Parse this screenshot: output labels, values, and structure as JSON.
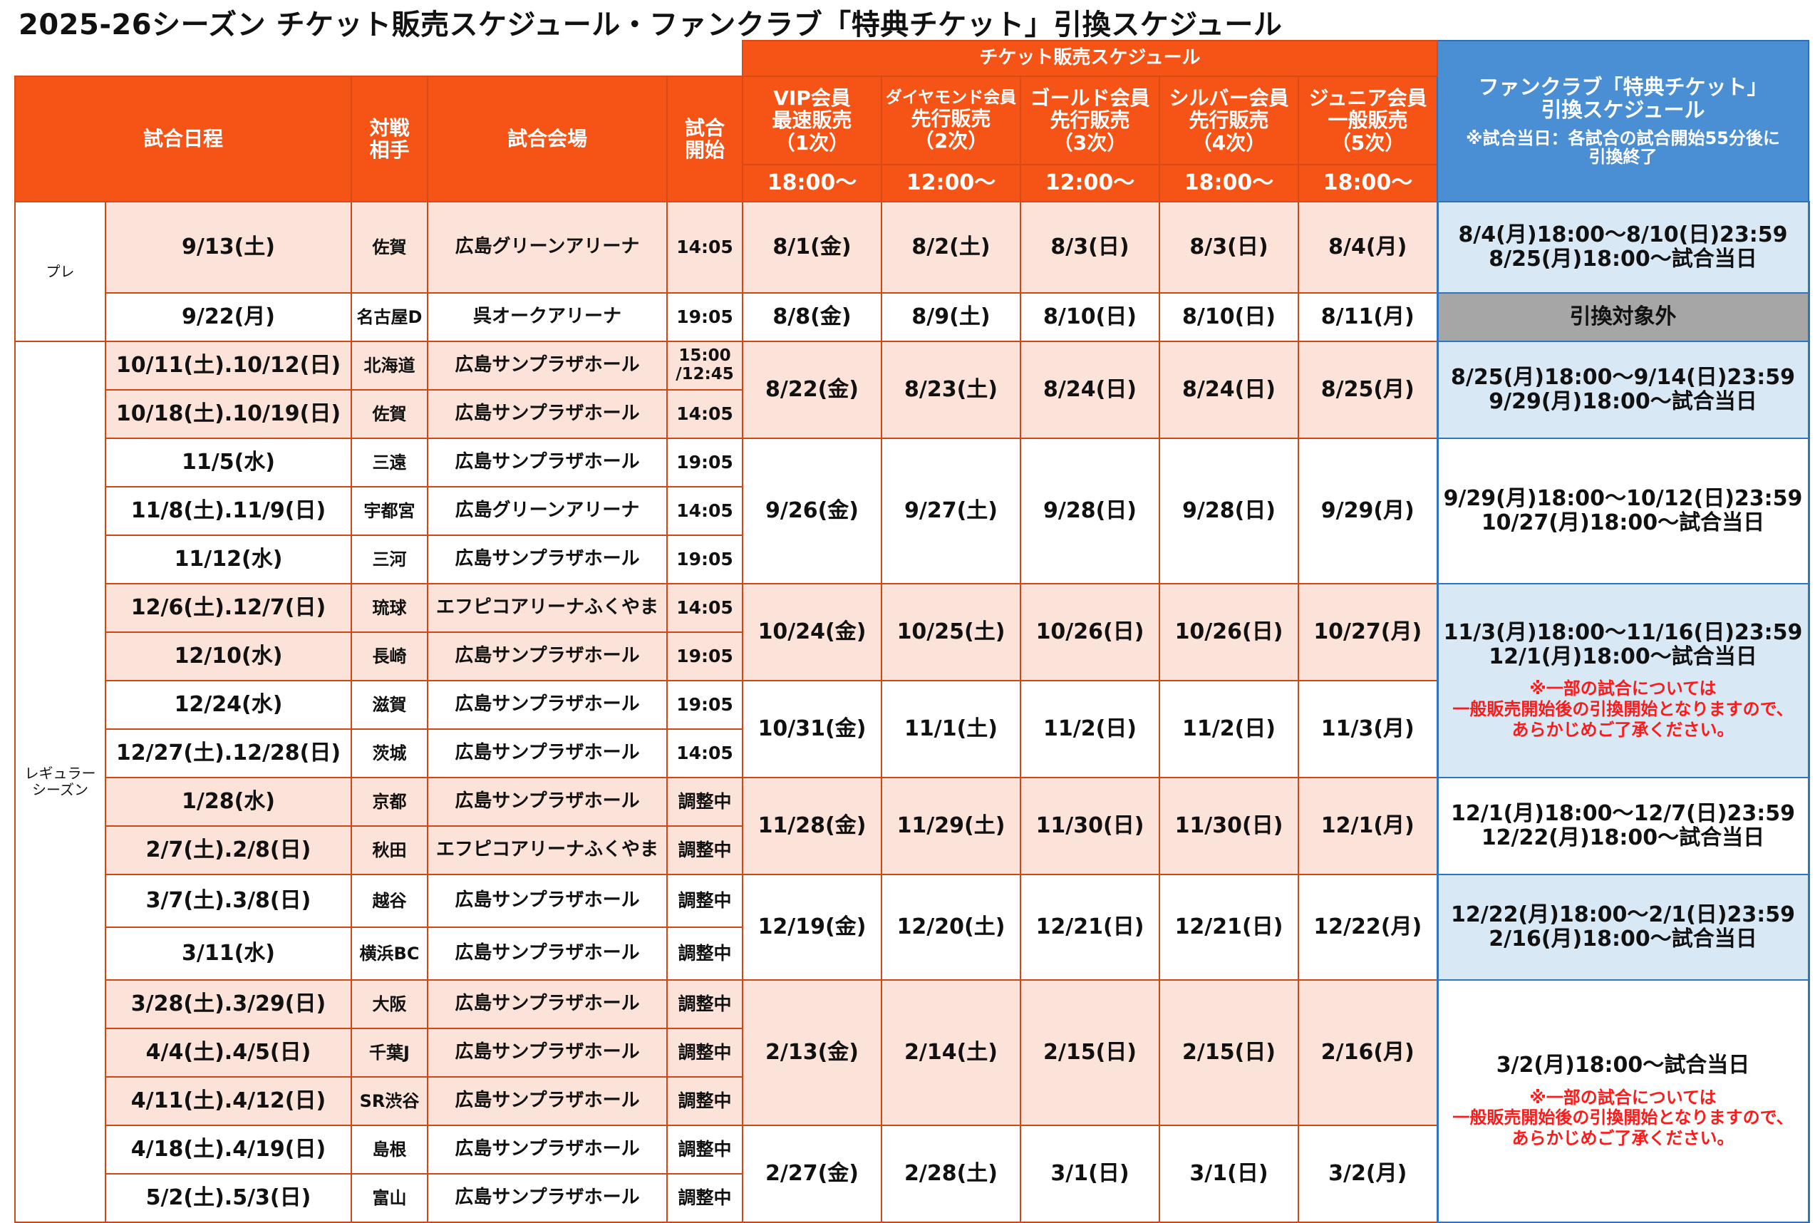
{
  "title": "2025-26シーズン チケット販売スケジュール・ファンクラブ「特典チケット」引換スケジュール",
  "colors": {
    "header_orange": "#f65316",
    "fanclub_blue": "#4a8fd4",
    "row_pink": "#fbe3da",
    "fanclub_light_blue": "#d9e8f5",
    "excluded_grey": "#a6a6a6",
    "note_red": "#ff1a1a"
  },
  "header": {
    "sales_group": "チケット販売スケジュール",
    "date": "試合日程",
    "opponent": [
      "対戦",
      "相手"
    ],
    "venue": "試合会場",
    "start": [
      "試合",
      "開始"
    ],
    "tiers": [
      {
        "lines": [
          "VIP会員",
          "最速販売",
          "（1次）"
        ],
        "time": "18:00～"
      },
      {
        "lines": [
          "ダイヤモンド会員",
          "先行販売",
          "（2次）"
        ],
        "time": "12:00～"
      },
      {
        "lines": [
          "ゴールド会員",
          "先行販売",
          "（3次）"
        ],
        "time": "12:00～"
      },
      {
        "lines": [
          "シルバー会員",
          "先行販売",
          "（4次）"
        ],
        "time": "18:00～"
      },
      {
        "lines": [
          "ジュニア会員",
          "一般販売",
          "（5次）"
        ],
        "time": "18:00～"
      }
    ],
    "fanclub_title": [
      "ファンクラブ「特典チケット」",
      "引換スケジュール"
    ],
    "fanclub_note": [
      "※試合当日：各試合の試合開始55分後に",
      "引換終了"
    ]
  },
  "sections": {
    "pre": "プレ",
    "regular": [
      "レギュラー",
      "シーズン"
    ]
  },
  "games": [
    {
      "date": "9/13(土)",
      "opp": "佐賀",
      "venue": "広島グリーンアリーナ",
      "start": [
        "14:05"
      ]
    },
    {
      "date": "9/22(月)",
      "opp": "名古屋D",
      "venue": "呉オークアリーナ",
      "start": [
        "19:05"
      ]
    },
    {
      "date": "10/11(土).10/12(日)",
      "opp": "北海道",
      "venue": "広島サンプラザホール",
      "start": [
        "15:00",
        "/12:45"
      ]
    },
    {
      "date": "10/18(土).10/19(日)",
      "opp": "佐賀",
      "venue": "広島サンプラザホール",
      "start": [
        "14:05"
      ]
    },
    {
      "date": "11/5(水)",
      "opp": "三遠",
      "venue": "広島サンプラザホール",
      "start": [
        "19:05"
      ]
    },
    {
      "date": "11/8(土).11/9(日)",
      "opp": "宇都宮",
      "venue": "広島グリーンアリーナ",
      "start": [
        "14:05"
      ]
    },
    {
      "date": "11/12(水)",
      "opp": "三河",
      "venue": "広島サンプラザホール",
      "start": [
        "19:05"
      ]
    },
    {
      "date": "12/6(土).12/7(日)",
      "opp": "琉球",
      "venue": "エフピコアリーナふくやま",
      "start": [
        "14:05"
      ]
    },
    {
      "date": "12/10(水)",
      "opp": "長崎",
      "venue": "広島サンプラザホール",
      "start": [
        "19:05"
      ]
    },
    {
      "date": "12/24(水)",
      "opp": "滋賀",
      "venue": "広島サンプラザホール",
      "start": [
        "19:05"
      ]
    },
    {
      "date": "12/27(土).12/28(日)",
      "opp": "茨城",
      "venue": "広島サンプラザホール",
      "start": [
        "14:05"
      ]
    },
    {
      "date": "1/28(水)",
      "opp": "京都",
      "venue": "広島サンプラザホール",
      "start": [
        "調整中"
      ]
    },
    {
      "date": "2/7(土).2/8(日)",
      "opp": "秋田",
      "venue": "エフピコアリーナふくやま",
      "start": [
        "調整中"
      ]
    },
    {
      "date": "3/7(土).3/8(日)",
      "opp": "越谷",
      "venue": "広島サンプラザホール",
      "start": [
        "調整中"
      ]
    },
    {
      "date": "3/11(水)",
      "opp": "横浜BC",
      "venue": "広島サンプラザホール",
      "start": [
        "調整中"
      ]
    },
    {
      "date": "3/28(土).3/29(日)",
      "opp": "大阪",
      "venue": "広島サンプラザホール",
      "start": [
        "調整中"
      ]
    },
    {
      "date": "4/4(土).4/5(日)",
      "opp": "千葉J",
      "venue": "広島サンプラザホール",
      "start": [
        "調整中"
      ]
    },
    {
      "date": "4/11(土).4/12(日)",
      "opp": "SR渋谷",
      "venue": "広島サンプラザホール",
      "start": [
        "調整中"
      ]
    },
    {
      "date": "4/18(土).4/19(日)",
      "opp": "島根",
      "venue": "広島サンプラザホール",
      "start": [
        "調整中"
      ]
    },
    {
      "date": "5/2(土).5/3(日)",
      "opp": "富山",
      "venue": "広島サンプラザホール",
      "start": [
        "調整中"
      ]
    }
  ],
  "sales": [
    [
      "8/1(金)",
      "8/2(土)",
      "8/3(日)",
      "8/3(日)",
      "8/4(月)"
    ],
    [
      "8/8(金)",
      "8/9(土)",
      "8/10(日)",
      "8/10(日)",
      "8/11(月)"
    ],
    [
      "8/22(金)",
      "8/23(土)",
      "8/24(日)",
      "8/24(日)",
      "8/25(月)"
    ],
    [
      "9/26(金)",
      "9/27(土)",
      "9/28(日)",
      "9/28(日)",
      "9/29(月)"
    ],
    [
      "10/24(金)",
      "10/25(土)",
      "10/26(日)",
      "10/26(日)",
      "10/27(月)"
    ],
    [
      "10/31(金)",
      "11/1(土)",
      "11/2(日)",
      "11/2(日)",
      "11/3(月)"
    ],
    [
      "11/28(金)",
      "11/29(土)",
      "11/30(日)",
      "11/30(日)",
      "12/1(月)"
    ],
    [
      "12/19(金)",
      "12/20(土)",
      "12/21(日)",
      "12/21(日)",
      "12/22(月)"
    ],
    [
      "2/13(金)",
      "2/14(土)",
      "2/15(日)",
      "2/15(日)",
      "2/16(月)"
    ],
    [
      "2/27(金)",
      "2/28(土)",
      "3/1(日)",
      "3/1(日)",
      "3/2(月)"
    ]
  ],
  "fanclub": [
    {
      "lines": [
        "8/4(月)18:00～8/10(日)23:59",
        "8/25(月)18:00～試合当日"
      ]
    },
    {
      "lines": [
        "引換対象外"
      ]
    },
    {
      "lines": [
        "8/25(月)18:00～9/14(日)23:59",
        "9/29(月)18:00～試合当日"
      ]
    },
    {
      "lines": [
        "9/29(月)18:00～10/12(日)23:59",
        "10/27(月)18:00～試合当日"
      ]
    },
    {
      "lines": [
        "11/3(月)18:00～11/16(日)23:59",
        "12/1(月)18:00～試合当日"
      ],
      "note": [
        "※一部の試合については",
        "一般販売開始後の引換開始となりますので、",
        "あらかじめご了承ください。"
      ]
    },
    {
      "lines": [
        "12/1(月)18:00～12/7(日)23:59",
        "12/22(月)18:00～試合当日"
      ]
    },
    {
      "lines": [
        "12/22(月)18:00～2/1(日)23:59",
        "2/16(月)18:00～試合当日"
      ]
    },
    {
      "lines": [
        "3/2(月)18:00～試合当日"
      ],
      "note": [
        "※一部の試合については",
        "一般販売開始後の引換開始となりますので、",
        "あらかじめご了承ください。"
      ]
    }
  ]
}
